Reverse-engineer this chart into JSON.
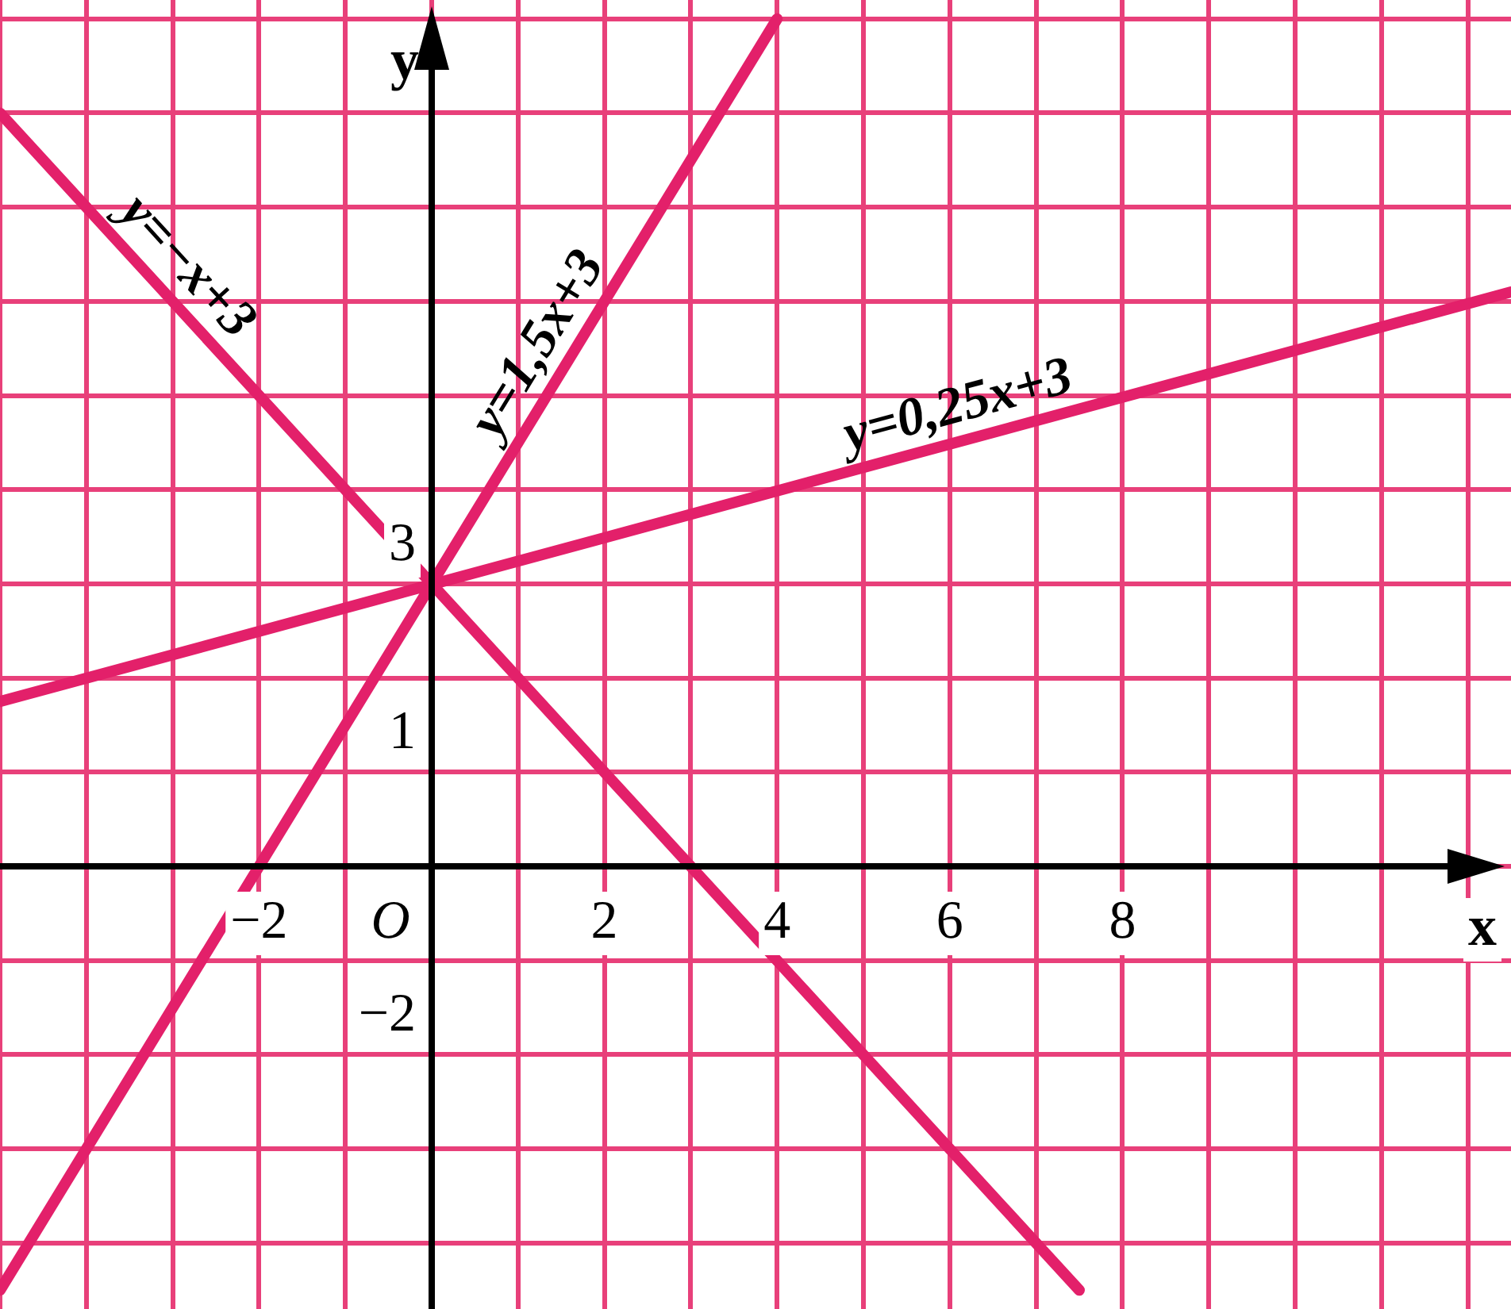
{
  "chart_data": {
    "type": "line",
    "xlabel": "x",
    "ylabel": "y",
    "xlim": [
      -5,
      12.5
    ],
    "ylim": [
      -4.7,
      9.2
    ],
    "xticks": [
      {
        "value": -5,
        "label": null
      },
      {
        "value": -4,
        "label": null
      },
      {
        "value": -3,
        "label": null
      },
      {
        "value": -2,
        "label": "−2"
      },
      {
        "value": -1,
        "label": null
      },
      {
        "value": 0,
        "label": null
      },
      {
        "value": 1,
        "label": null
      },
      2,
      {
        "value": 3,
        "label": null
      },
      4,
      {
        "value": 5,
        "label": null
      },
      6,
      {
        "value": 7,
        "label": null
      },
      8,
      {
        "value": 9,
        "label": null
      },
      {
        "value": 10,
        "label": null
      },
      {
        "value": 11,
        "label": null
      },
      {
        "value": 12,
        "label": null
      }
    ],
    "yticks": [
      {
        "value": -4,
        "label": null
      },
      {
        "value": -3,
        "label": null
      },
      {
        "value": -2,
        "label": "−2"
      },
      {
        "value": -1,
        "label": null
      },
      {
        "value": 0,
        "label": null
      },
      1,
      {
        "value": 2,
        "label": null
      },
      3,
      {
        "value": 4,
        "label": null
      },
      {
        "value": 5,
        "label": null
      },
      {
        "value": 6,
        "label": null
      },
      {
        "value": 7,
        "label": null
      },
      {
        "value": 8,
        "label": null
      },
      {
        "value": 9,
        "label": null
      }
    ],
    "annotations": [
      "O"
    ],
    "grid": true,
    "marker": "none",
    "line_style": "solid",
    "series": [
      {
        "name": "y=−x+3",
        "color": "#e3206a",
        "x": [
          -5,
          7.5
        ],
        "values": [
          8,
          -4.5
        ]
      },
      {
        "name": "y=1,5x+3",
        "color": "#e3206a",
        "x": [
          -5,
          4
        ],
        "values": [
          -4.5,
          9
        ]
      },
      {
        "name": "y=0,25x+3",
        "color": "#e3206a",
        "x": [
          -5,
          12.5
        ],
        "values": [
          1.75,
          6.1
        ]
      }
    ]
  }
}
